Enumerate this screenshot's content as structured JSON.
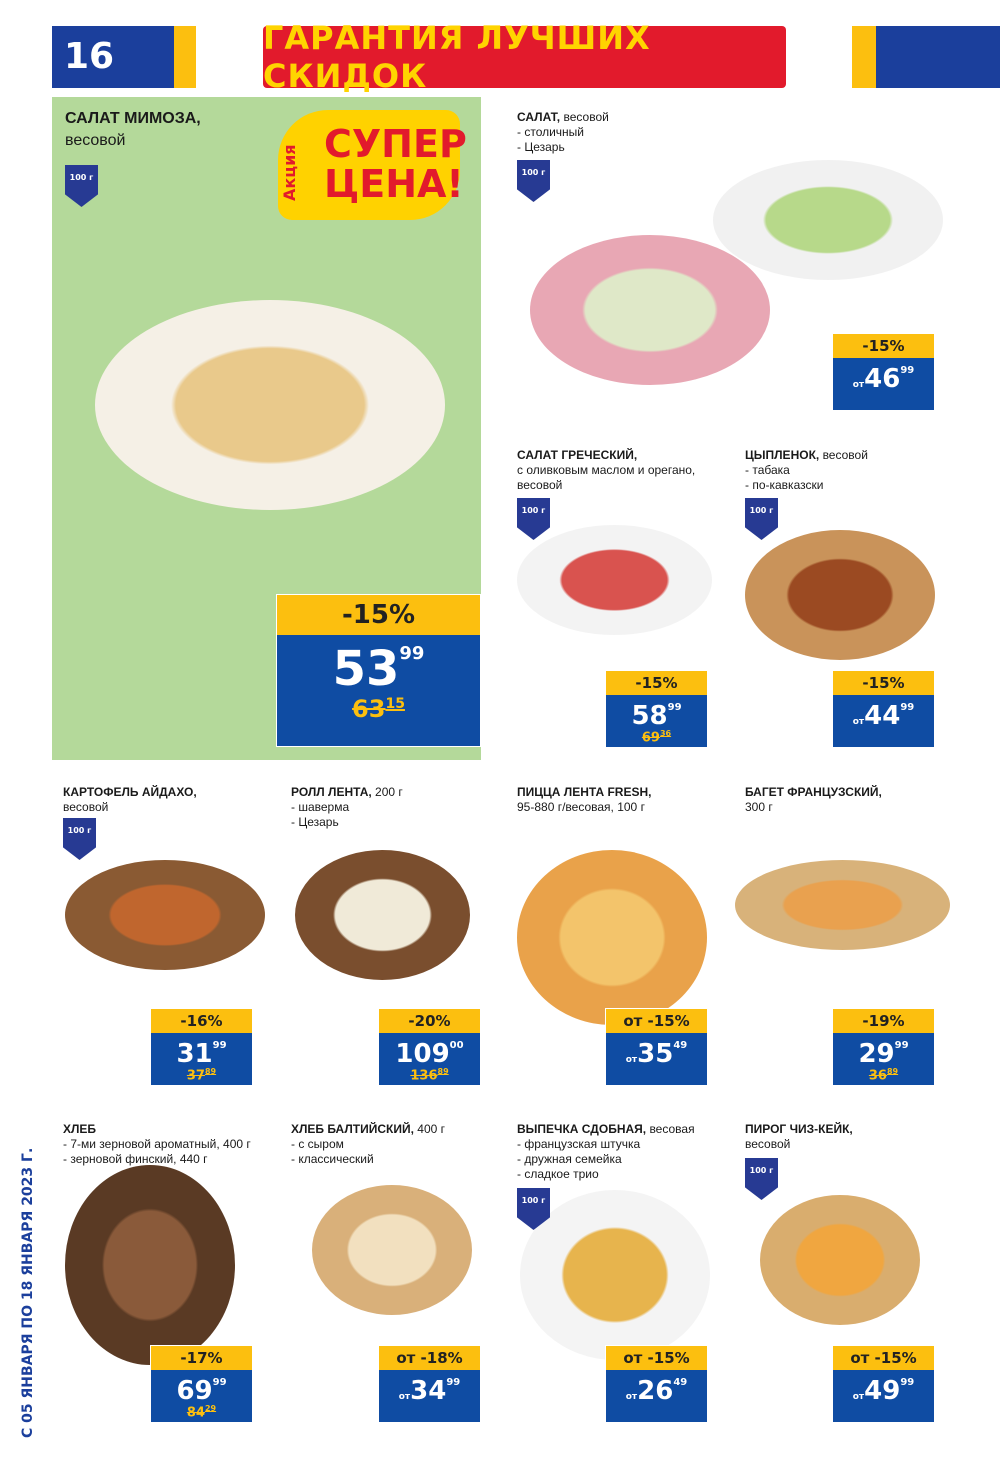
{
  "header": {
    "page_number": "16",
    "title": "ГАРАНТИЯ ЛУЧШИХ СКИДОК"
  },
  "promo": {
    "label": "Акция",
    "text": "СУПЕР ЦЕНА!"
  },
  "validity": "С 05 ЯНВАРЯ ПО 18 ЯНВАРЯ 2023 Г.",
  "colors": {
    "brand_blue": "#1b3f9c",
    "accent_yellow": "#fcbf0f",
    "title_red": "#e21a2c",
    "panel_green": "#b4d99a"
  },
  "products": [
    {
      "name": "САЛАТ МИМОЗА,",
      "rest": "",
      "lines": [
        "весовой"
      ],
      "weight": "100 г",
      "discount": "-15%",
      "from": "",
      "price": "53",
      "cents": "99",
      "old": "63",
      "old_cents": "15"
    },
    {
      "name": "САЛАТ,",
      "rest": " весовой",
      "lines": [
        "- столичный",
        "- Цезарь"
      ],
      "weight": "100 г",
      "discount": "-15%",
      "from": "от",
      "price": "46",
      "cents": "99",
      "old": "",
      "old_cents": ""
    },
    {
      "name": "САЛАТ ГРЕЧЕСКИЙ,",
      "rest": "",
      "lines": [
        "с оливковым маслом и орегано,",
        "весовой"
      ],
      "weight": "100 г",
      "discount": "-15%",
      "from": "",
      "price": "58",
      "cents": "99",
      "old": "69",
      "old_cents": "36"
    },
    {
      "name": "ЦЫПЛЕНОК,",
      "rest": " весовой",
      "lines": [
        "- табака",
        "- по-кавказски"
      ],
      "weight": "100 г",
      "discount": "-15%",
      "from": "от",
      "price": "44",
      "cents": "99",
      "old": "",
      "old_cents": ""
    },
    {
      "name": "КАРТОФЕЛЬ АЙДАХО,",
      "rest": "",
      "lines": [
        "весовой"
      ],
      "weight": "100 г",
      "discount": "-16%",
      "from": "",
      "price": "31",
      "cents": "99",
      "old": "37",
      "old_cents": "89"
    },
    {
      "name": "РОЛЛ ЛЕНТА,",
      "rest": " 200 г",
      "lines": [
        "- шаверма",
        "- Цезарь"
      ],
      "weight": "",
      "discount": "-20%",
      "from": "",
      "price": "109",
      "cents": "00",
      "old": "136",
      "old_cents": "89"
    },
    {
      "name": "ПИЦЦА ЛЕНТА FRESH,",
      "rest": "",
      "lines": [
        "95-880 г/весовая, 100 г"
      ],
      "weight": "",
      "discount": "от -15%",
      "from": "от",
      "price": "35",
      "cents": "49",
      "old": "",
      "old_cents": ""
    },
    {
      "name": "БАГЕТ ФРАНЦУЗСКИЙ,",
      "rest": "",
      "lines": [
        "300 г"
      ],
      "weight": "",
      "discount": "-19%",
      "from": "",
      "price": "29",
      "cents": "99",
      "old": "36",
      "old_cents": "89"
    },
    {
      "name": "ХЛЕБ",
      "rest": "",
      "lines": [
        "- 7-ми зерновой ароматный, 400 г",
        "- зерновой финский, 440 г"
      ],
      "weight": "",
      "discount": "-17%",
      "from": "",
      "price": "69",
      "cents": "99",
      "old": "84",
      "old_cents": "29"
    },
    {
      "name": "ХЛЕБ БАЛТИЙСКИЙ,",
      "rest": " 400 г",
      "lines": [
        "- с сыром",
        "- классический"
      ],
      "weight": "",
      "discount": "от -18%",
      "from": "от",
      "price": "34",
      "cents": "99",
      "old": "",
      "old_cents": ""
    },
    {
      "name": "ВЫПЕЧКА СДОБНАЯ,",
      "rest": " весовая",
      "lines": [
        "- французская штучка",
        "- дружная семейка",
        "- сладкое трио"
      ],
      "weight": "100 г",
      "discount": "от -15%",
      "from": "от",
      "price": "26",
      "cents": "49",
      "old": "",
      "old_cents": ""
    },
    {
      "name": "ПИРОГ ЧИЗ-КЕЙК,",
      "rest": "",
      "lines": [
        "весовой"
      ],
      "weight": "100 г",
      "discount": "от -15%",
      "from": "от",
      "price": "49",
      "cents": "99",
      "old": "",
      "old_cents": ""
    }
  ]
}
